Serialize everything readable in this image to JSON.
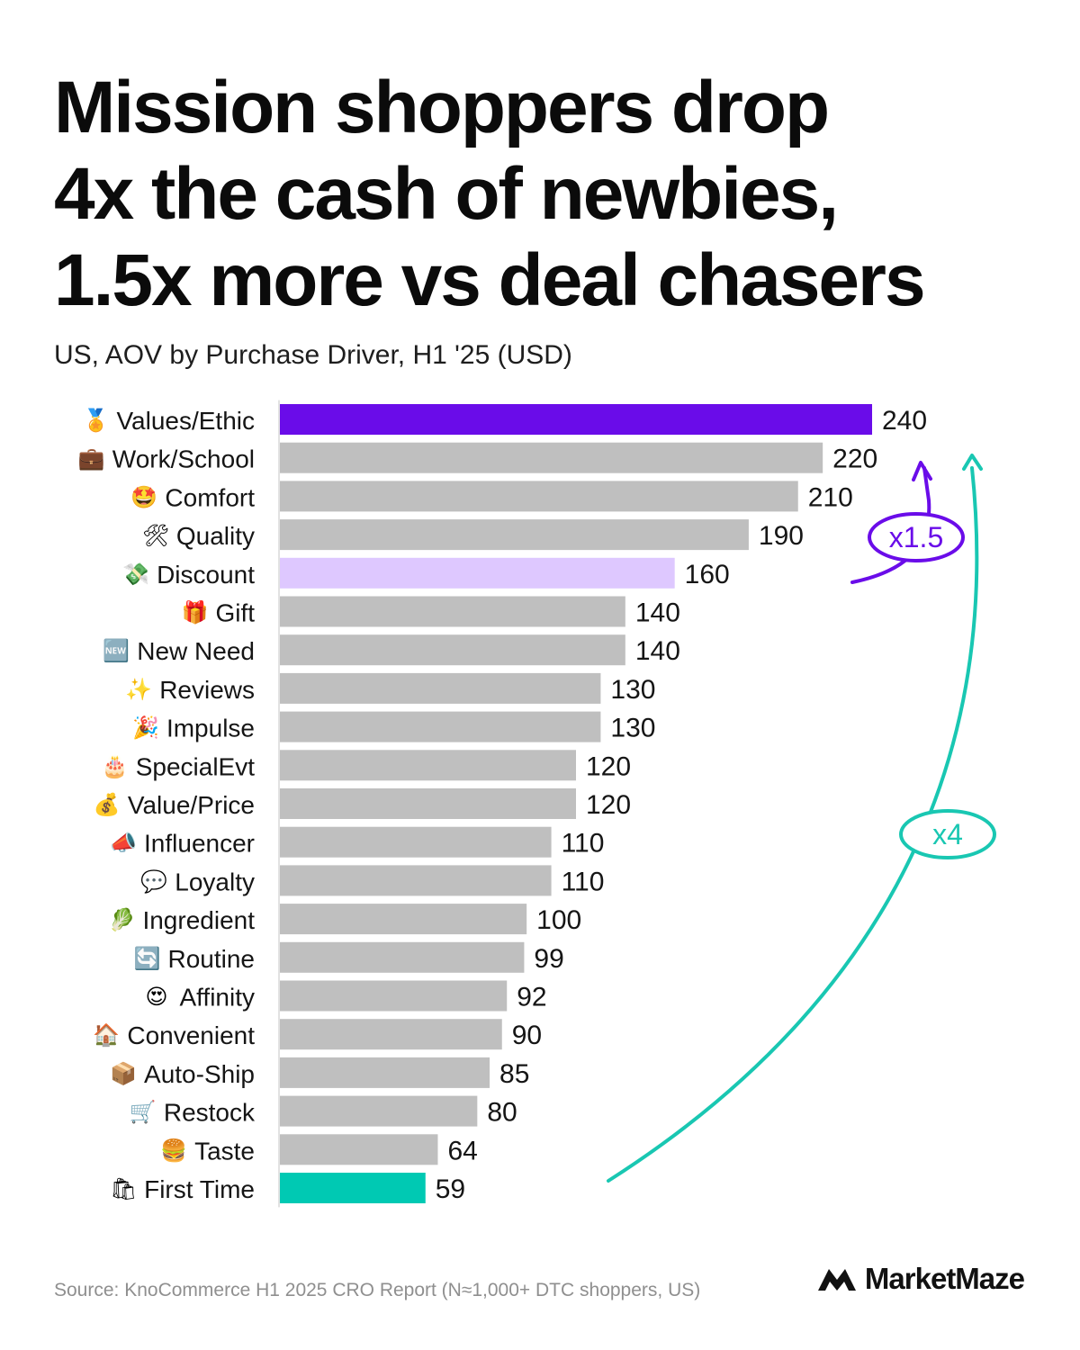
{
  "headline": {
    "line1": "Mission shoppers drop",
    "line2": "4x the cash of newbies,",
    "line3": "1.5x more vs deal chasers"
  },
  "subtitle": "US, AOV by Purchase Driver, H1 '25 (USD)",
  "colors": {
    "highlight": "#6a0ce9",
    "discount": "#dec8ff",
    "first_time": "#00c9b3",
    "default_bar": "#bfbfbf",
    "annotation_purple": "#6a0ce9",
    "annotation_teal": "#19c7b2"
  },
  "chart_data": {
    "type": "bar",
    "orientation": "horizontal",
    "title": "Mission shoppers drop 4x the cash of newbies, 1.5x more vs deal chasers",
    "subtitle": "US, AOV by Purchase Driver, H1 '25 (USD)",
    "grid": false,
    "categories": [
      "Values/Ethic",
      "Work/School",
      "Comfort",
      "Quality",
      "Discount",
      "Gift",
      "New Need",
      "Reviews",
      "Impulse",
      "SpecialEvt",
      "Value/Price",
      "Influencer",
      "Loyalty",
      "Ingredient",
      "Routine",
      "Affinity",
      "Convenient",
      "Auto-Ship",
      "Restock",
      "Taste",
      "First Time"
    ],
    "icons": [
      "medal-icon",
      "briefcase-icon",
      "star-struck-face-icon",
      "hammer-wrench-icon",
      "money-wings-icon",
      "gift-icon",
      "new-badge-icon",
      "sparkles-icon",
      "party-popper-icon",
      "birthday-cake-icon",
      "money-bag-icon",
      "megaphone-icon",
      "speech-bubble-icon",
      "leafy-green-icon",
      "repeat-arrows-icon",
      "heart-eyes-face-icon",
      "house-icon",
      "package-icon",
      "shopping-cart-icon",
      "burger-icon",
      "shopping-bags-icon"
    ],
    "values": [
      240,
      220,
      210,
      190,
      160,
      140,
      140,
      130,
      130,
      120,
      120,
      110,
      110,
      100,
      99,
      92,
      90,
      85,
      80,
      64,
      59
    ],
    "highlights": {
      "Values/Ethic": "highlight",
      "Discount": "discount",
      "First Time": "first_time"
    },
    "xlim": [
      0,
      240
    ],
    "annotations": [
      {
        "label": "x1.5",
        "from": "Discount",
        "to": "Values/Ethic",
        "color": "annotation_purple"
      },
      {
        "label": "x4",
        "from": "First Time",
        "to": "Values/Ethic",
        "color": "annotation_teal"
      }
    ]
  },
  "footer": {
    "source": "Source: KnoCommerce H1 2025 CRO Report (N≈1,000+ DTC shoppers, US)",
    "brand": "MarketMaze"
  }
}
